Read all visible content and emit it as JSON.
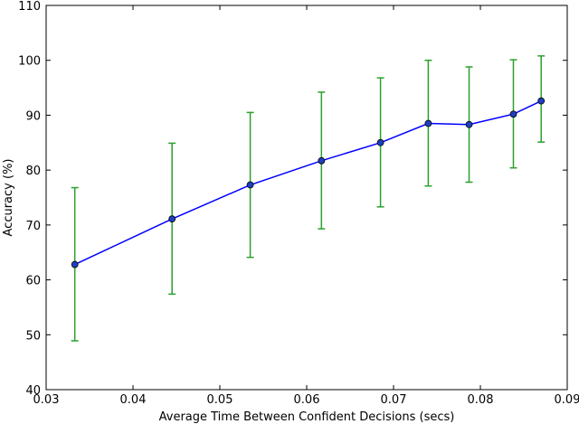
{
  "chart_data": {
    "type": "line",
    "title": "",
    "xlabel": "Average Time Between Confident Decisions (secs)",
    "ylabel": "Accuracy (%)",
    "xlim": [
      0.03,
      0.09
    ],
    "ylim": [
      40,
      110
    ],
    "xticks": [
      "0.03",
      "0.04",
      "0.05",
      "0.06",
      "0.07",
      "0.08",
      "0.09"
    ],
    "yticks": [
      "40",
      "50",
      "60",
      "70",
      "80",
      "90",
      "100",
      "110"
    ],
    "grid": false,
    "legend": "none",
    "series": [
      {
        "color": "#0000ff",
        "marker_color": "#1f3fbf",
        "errorbar_color": "#2ca02c",
        "x": [
          0.0333,
          0.0445,
          0.0535,
          0.0617,
          0.0685,
          0.074,
          0.0787,
          0.0838,
          0.087
        ],
        "y": [
          62.8,
          71.1,
          77.3,
          81.7,
          85.0,
          88.5,
          88.3,
          90.2,
          92.6
        ],
        "yerr_low": [
          48.9,
          57.4,
          64.1,
          69.3,
          73.3,
          77.1,
          77.8,
          80.4,
          85.1
        ],
        "yerr_high": [
          76.8,
          84.9,
          90.5,
          94.2,
          96.8,
          100.0,
          98.8,
          100.1,
          100.8
        ]
      }
    ]
  }
}
